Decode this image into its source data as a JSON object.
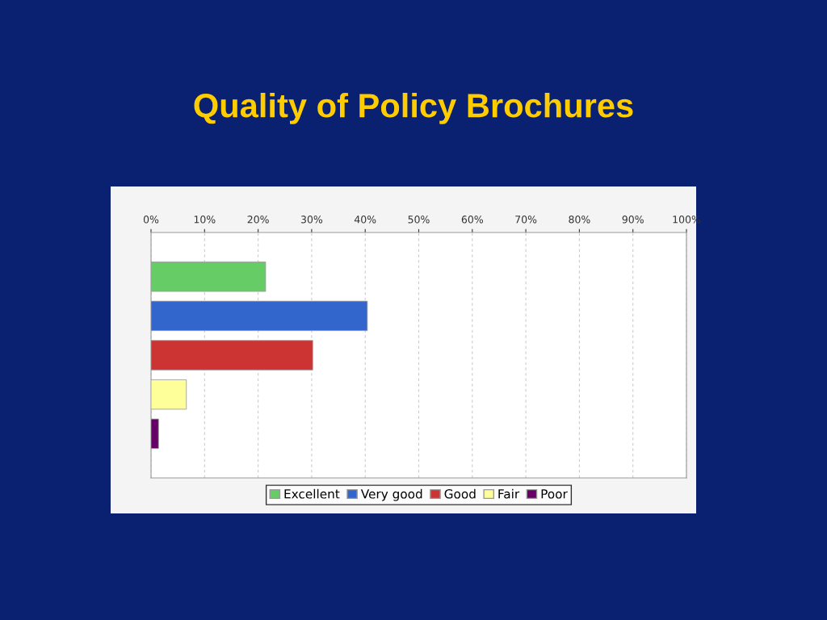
{
  "chart_data": {
    "type": "bar",
    "title": "Quality of Policy Brochures",
    "orientation": "horizontal",
    "categories": [
      null
    ],
    "series": [
      {
        "name": "Excellent",
        "color": "#66cc66",
        "values": [
          21.4
        ]
      },
      {
        "name": "Very good",
        "color": "#3366cc",
        "values": [
          40.4
        ]
      },
      {
        "name": "Good",
        "color": "#cc3333",
        "values": [
          30.2
        ]
      },
      {
        "name": "Fair",
        "color": "#ffff99",
        "values": [
          6.6
        ]
      },
      {
        "name": "Poor",
        "color": "#660066",
        "values": [
          1.4
        ]
      }
    ],
    "xlim": [
      0,
      100
    ],
    "xticks": [
      {
        "value": 0,
        "label": "0%"
      },
      {
        "value": 10,
        "label": "10%"
      },
      {
        "value": 20,
        "label": "20%"
      },
      {
        "value": 30,
        "label": "30%"
      },
      {
        "value": 40,
        "label": "40%"
      },
      {
        "value": 50,
        "label": "50%"
      },
      {
        "value": 60,
        "label": "60%"
      },
      {
        "value": 70,
        "label": "70%"
      },
      {
        "value": 80,
        "label": "80%"
      },
      {
        "value": 90,
        "label": "90%"
      },
      {
        "value": 100,
        "label": "100%"
      }
    ],
    "grid": "x",
    "legend": "bottom"
  }
}
